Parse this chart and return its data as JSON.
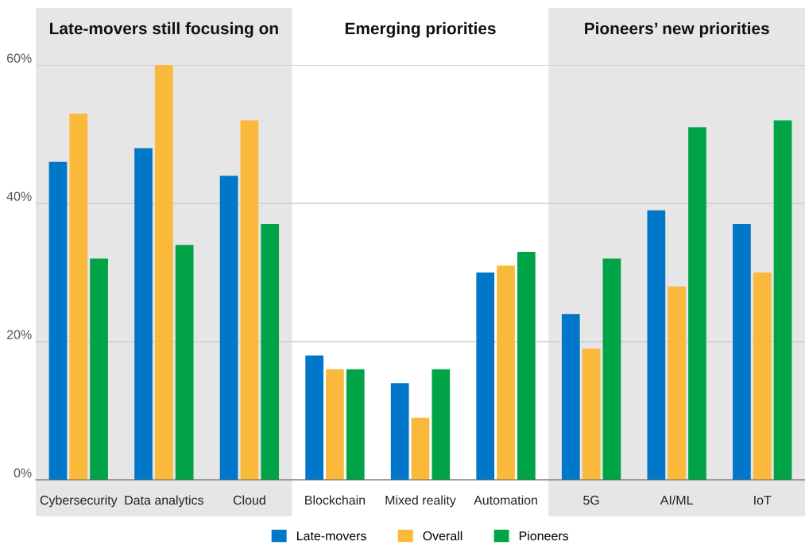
{
  "chart_data": {
    "type": "bar",
    "categories": [
      "Cybersecurity",
      "Data analytics",
      "Cloud",
      "Blockchain",
      "Mixed reality",
      "Automation",
      "5G",
      "AI/ML",
      "IoT"
    ],
    "series": [
      {
        "name": "Late-movers",
        "color": "#0077c8",
        "values": [
          46,
          48,
          44,
          18,
          14,
          30,
          24,
          39,
          37
        ]
      },
      {
        "name": "Overall",
        "color": "#fbb93c",
        "values": [
          53,
          60,
          52,
          16,
          9,
          31,
          19,
          28,
          30
        ]
      },
      {
        "name": "Pioneers",
        "color": "#00a346",
        "values": [
          32,
          34,
          37,
          16,
          16,
          33,
          32,
          51,
          52
        ]
      }
    ],
    "ylim": [
      0,
      60
    ],
    "yticks": [
      {
        "value": 0,
        "label": "0%"
      },
      {
        "value": 20,
        "label": "20%"
      },
      {
        "value": 40,
        "label": "40%"
      },
      {
        "value": 60,
        "label": "60%"
      }
    ],
    "grid": "y",
    "legend": "bottom",
    "bands": [
      {
        "axis": "x",
        "from": "Cybersecurity",
        "to": "Cloud",
        "label": "Late-movers still focusing on",
        "color": "#e6e6e6"
      },
      {
        "axis": "x",
        "from": "Blockchain",
        "to": "Automation",
        "label": "Emerging priorities",
        "color": "#ffffff"
      },
      {
        "axis": "x",
        "from": "5G",
        "to": "IoT",
        "label": "Pioneers’ new priorities",
        "color": "#e6e6e6"
      }
    ]
  }
}
